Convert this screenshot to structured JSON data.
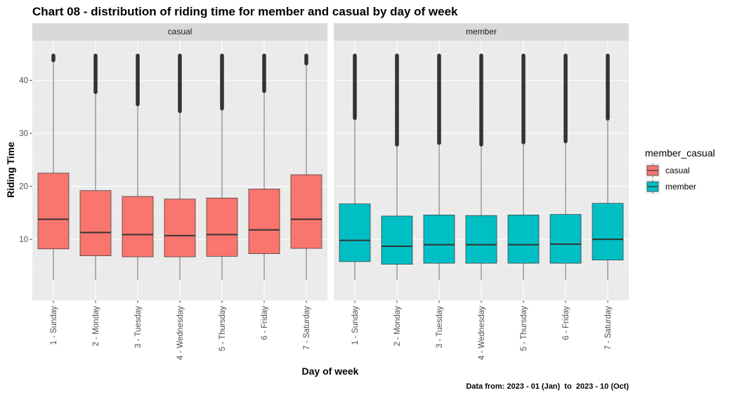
{
  "chart_data": {
    "type": "boxplot",
    "title": "Chart 08 - distribution of riding time for member and casual by day of week",
    "xlabel": "Day of week",
    "ylabel": "Riding Time",
    "caption": "Data from: 2023 - 01 (Jan)  to  2023 - 10 (Oct)",
    "ylim": [
      -1.5,
      47.5
    ],
    "yticks": [
      10,
      20,
      30,
      40
    ],
    "categories": [
      "1 - Sunday",
      "2 - Monday",
      "3 - Tuesday",
      "4 - Wednesday",
      "5 - Thursday",
      "6 - Friday",
      "7 - Saturday"
    ],
    "legend": {
      "title": "member_casual",
      "position": "right"
    },
    "grid": true,
    "facets": [
      {
        "label": "casual",
        "color": "#F8766D",
        "series": [
          {
            "q1": 8.2,
            "median": 13.8,
            "q3": 22.5,
            "whisker_low": 2.3,
            "whisker_high": 43.8,
            "outliers_from": 43.8,
            "outliers_to": 44.7
          },
          {
            "q1": 6.9,
            "median": 11.3,
            "q3": 19.2,
            "whisker_low": 2.3,
            "whisker_high": 37.8,
            "outliers_from": 37.8,
            "outliers_to": 44.7
          },
          {
            "q1": 6.7,
            "median": 10.9,
            "q3": 18.1,
            "whisker_low": 2.3,
            "whisker_high": 35.5,
            "outliers_from": 35.5,
            "outliers_to": 44.7
          },
          {
            "q1": 6.7,
            "median": 10.7,
            "q3": 17.6,
            "whisker_low": 2.3,
            "whisker_high": 34.2,
            "outliers_from": 34.2,
            "outliers_to": 44.7
          },
          {
            "q1": 6.8,
            "median": 10.9,
            "q3": 17.8,
            "whisker_low": 2.3,
            "whisker_high": 34.7,
            "outliers_from": 34.7,
            "outliers_to": 44.7
          },
          {
            "q1": 7.3,
            "median": 11.8,
            "q3": 19.5,
            "whisker_low": 2.3,
            "whisker_high": 38.0,
            "outliers_from": 38.0,
            "outliers_to": 44.7
          },
          {
            "q1": 8.3,
            "median": 13.8,
            "q3": 22.2,
            "whisker_low": 2.3,
            "whisker_high": 43.2,
            "outliers_from": 43.2,
            "outliers_to": 44.7
          }
        ]
      },
      {
        "label": "member",
        "color": "#00BFC4",
        "series": [
          {
            "q1": 5.8,
            "median": 9.8,
            "q3": 16.7,
            "whisker_low": 2.3,
            "whisker_high": 32.9,
            "outliers_from": 32.9,
            "outliers_to": 44.7
          },
          {
            "q1": 5.3,
            "median": 8.7,
            "q3": 14.4,
            "whisker_low": 2.3,
            "whisker_high": 27.9,
            "outliers_from": 27.9,
            "outliers_to": 44.7
          },
          {
            "q1": 5.5,
            "median": 9.0,
            "q3": 14.6,
            "whisker_low": 2.3,
            "whisker_high": 28.2,
            "outliers_from": 28.2,
            "outliers_to": 44.7
          },
          {
            "q1": 5.5,
            "median": 9.0,
            "q3": 14.5,
            "whisker_low": 2.3,
            "whisker_high": 27.9,
            "outliers_from": 27.9,
            "outliers_to": 44.7
          },
          {
            "q1": 5.5,
            "median": 9.0,
            "q3": 14.6,
            "whisker_low": 2.3,
            "whisker_high": 28.3,
            "outliers_from": 28.3,
            "outliers_to": 44.7
          },
          {
            "q1": 5.5,
            "median": 9.1,
            "q3": 14.7,
            "whisker_low": 2.3,
            "whisker_high": 28.5,
            "outliers_from": 28.5,
            "outliers_to": 44.7
          },
          {
            "q1": 6.1,
            "median": 10.0,
            "q3": 16.8,
            "whisker_low": 2.3,
            "whisker_high": 32.8,
            "outliers_from": 32.8,
            "outliers_to": 44.7
          }
        ]
      }
    ]
  }
}
